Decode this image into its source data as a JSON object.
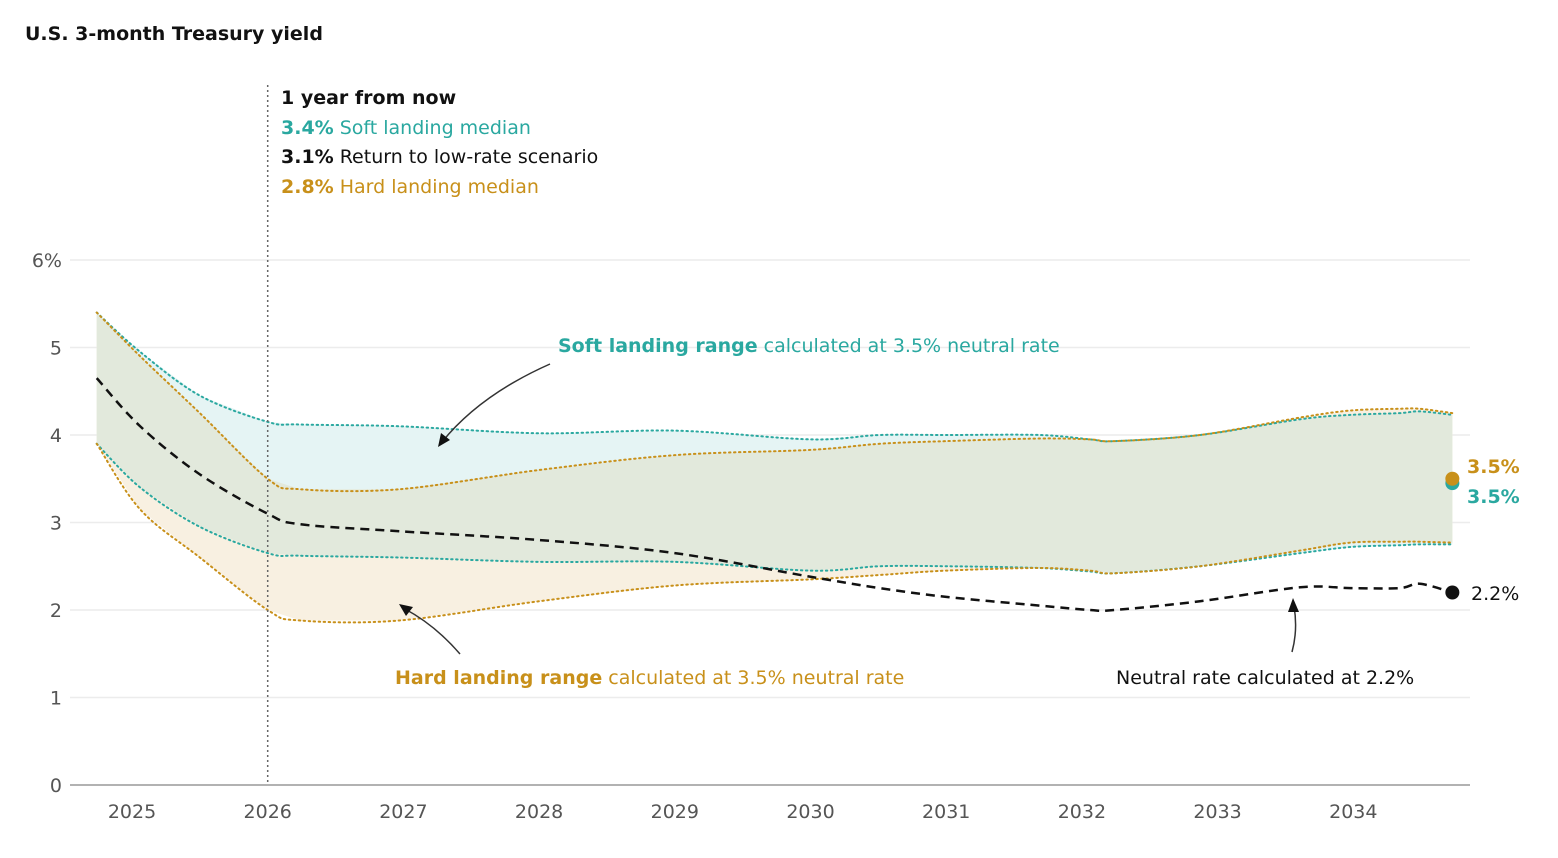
{
  "chart_data": {
    "type": "line",
    "title": "U.S. 3-month Treasury yield",
    "xlabel": "",
    "ylabel": "",
    "ylim": [
      0,
      6
    ],
    "xlim": [
      2024.5,
      2035
    ],
    "y_ticks": [
      "0",
      "1",
      "2",
      "3",
      "4",
      "5",
      "6%"
    ],
    "y_tick_values": [
      0,
      1,
      2,
      3,
      4,
      5,
      6
    ],
    "x_ticks": [
      "2025",
      "2026",
      "2027",
      "2028",
      "2029",
      "2030",
      "2031",
      "2032",
      "2033",
      "2034"
    ],
    "x_tick_values": [
      2025,
      2026,
      2027,
      2028,
      2029,
      2030,
      2031,
      2032,
      2033,
      2034
    ],
    "grid": true,
    "x": [
      2024.74,
      2025.06,
      2025.5,
      2026.0,
      2026.24,
      2026.97,
      2028.0,
      2029.0,
      2030.0,
      2030.51,
      2031.0,
      2031.69,
      2032.06,
      2032.24,
      2032.87,
      2033.61,
      2033.98,
      2034.34,
      2034.49,
      2034.73
    ],
    "series": [
      {
        "name": "Soft landing range upper",
        "color": "#2aa8a0",
        "style": "dotted",
        "values": [
          5.4,
          4.95,
          4.45,
          4.15,
          4.12,
          4.1,
          4.02,
          4.05,
          3.95,
          4.0,
          4.0,
          4.0,
          3.95,
          3.93,
          4.0,
          4.18,
          4.23,
          4.25,
          4.27,
          4.23
        ]
      },
      {
        "name": "Soft landing range lower",
        "color": "#2aa8a0",
        "style": "dotted",
        "values": [
          3.9,
          3.4,
          2.95,
          2.65,
          2.62,
          2.6,
          2.55,
          2.55,
          2.45,
          2.5,
          2.5,
          2.48,
          2.44,
          2.42,
          2.5,
          2.65,
          2.72,
          2.74,
          2.75,
          2.75
        ]
      },
      {
        "name": "Hard landing range upper",
        "color": "#c8901a",
        "style": "dotted",
        "values": [
          5.4,
          4.9,
          4.25,
          3.5,
          3.38,
          3.38,
          3.6,
          3.77,
          3.83,
          3.9,
          3.93,
          3.96,
          3.95,
          3.93,
          4.0,
          4.2,
          4.28,
          4.3,
          4.3,
          4.25
        ]
      },
      {
        "name": "Hard landing range lower",
        "color": "#c8901a",
        "style": "dotted",
        "values": [
          3.9,
          3.15,
          2.6,
          2.0,
          1.88,
          1.88,
          2.1,
          2.28,
          2.35,
          2.4,
          2.45,
          2.48,
          2.45,
          2.42,
          2.5,
          2.68,
          2.77,
          2.78,
          2.78,
          2.77
        ]
      },
      {
        "name": "Neutral rate calculated at 2.2%",
        "color": "#111111",
        "style": "dashed",
        "values": [
          4.65,
          4.1,
          3.55,
          3.1,
          2.98,
          2.9,
          2.8,
          2.65,
          2.38,
          2.25,
          2.15,
          2.05,
          2.0,
          2.0,
          2.1,
          2.26,
          2.25,
          2.25,
          2.3,
          2.2
        ]
      }
    ],
    "end_points": [
      {
        "label": "3.5%",
        "value": 3.5,
        "color": "#c8901a"
      },
      {
        "label": "3.5%",
        "value": 3.45,
        "color": "#2aa8a0"
      },
      {
        "label": "2.2%",
        "value": 2.2,
        "color": "#111111"
      }
    ],
    "reference_line": {
      "year": 2026.0
    },
    "callout": {
      "heading": "1 year from now",
      "rows": [
        {
          "value": "3.4%",
          "text": "Soft landing median",
          "color": "#2aa8a0"
        },
        {
          "value": "3.1%",
          "text": "Return to low-rate scenario",
          "color": "#111111"
        },
        {
          "value": "2.8%",
          "text": "Hard landing median",
          "color": "#c8901a"
        }
      ]
    },
    "annotations": {
      "soft": {
        "bold": "Soft landing range",
        "rest": " calculated at 3.5% neutral rate",
        "color": "#2aa8a0"
      },
      "hard": {
        "bold": "Hard landing range",
        "rest": " calculated at 3.5% neutral rate",
        "color": "#c8901a"
      },
      "neutral": {
        "text": "Neutral rate calculated at 2.2%",
        "color": "#111111"
      }
    },
    "fills": {
      "soft": "#e5f4f4",
      "hard": "#f8f0e1",
      "overlap": "#e2e9dc"
    }
  }
}
